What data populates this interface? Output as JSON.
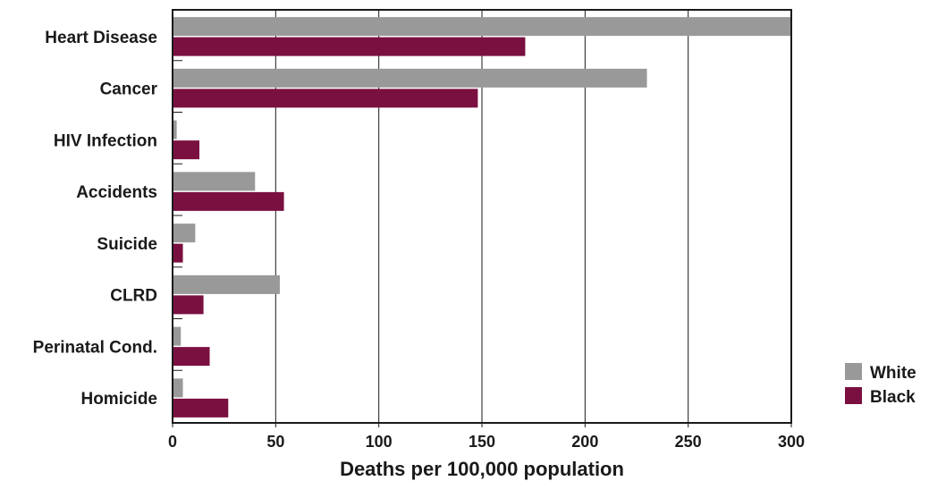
{
  "chart_data": {
    "type": "bar",
    "orientation": "horizontal",
    "categories": [
      "Heart Disease",
      "Cancer",
      "HIV Infection",
      "Accidents",
      "Suicide",
      "CLRD",
      "Perinatal Cond.",
      "Homicide"
    ],
    "series": [
      {
        "name": "White",
        "color": "#999999",
        "values": [
          300,
          230,
          2,
          40,
          11,
          52,
          4,
          5
        ]
      },
      {
        "name": "Black",
        "color": "#7a1040",
        "values": [
          171,
          148,
          13,
          54,
          5,
          15,
          18,
          27
        ]
      }
    ],
    "xlabel": "Deaths per 100,000 population",
    "xlim": [
      0,
      300
    ],
    "xticks": [
      0,
      50,
      100,
      150,
      200,
      250,
      300
    ],
    "grid": "vertical",
    "legend_position": "bottom-right"
  }
}
